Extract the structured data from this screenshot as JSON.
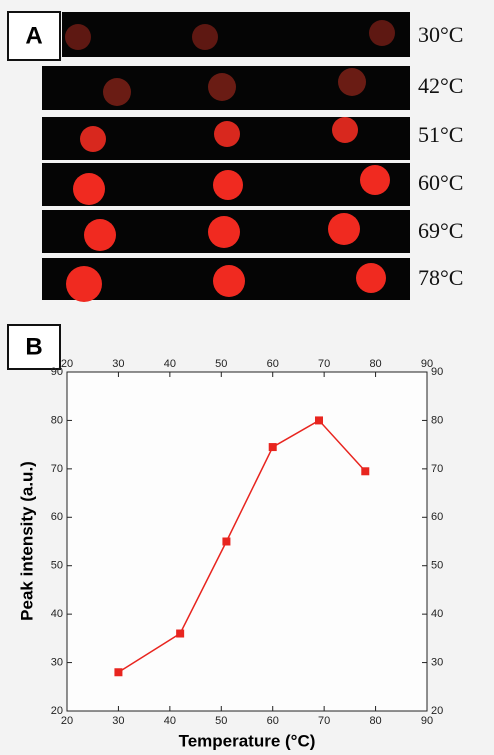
{
  "panel_a": {
    "label": "A",
    "rows": [
      "30°C",
      "42°C",
      "51°C",
      "60°C",
      "69°C",
      "78°C"
    ]
  },
  "chart_data": {
    "type": "line",
    "panel_label": "B",
    "xlabel": "Temperature (°C)",
    "ylabel": "Peak intensity (a.u.)",
    "x": [
      30,
      42,
      51,
      60,
      69,
      78
    ],
    "values": [
      28,
      36,
      55,
      74.5,
      80,
      69.5
    ],
    "color": "#e8251f",
    "xlim": [
      20,
      90
    ],
    "ylim": [
      20,
      90
    ],
    "xticks": [
      20,
      30,
      40,
      50,
      60,
      70,
      80,
      90
    ],
    "yticks": [
      20,
      30,
      40,
      50,
      60,
      70,
      80,
      90
    ],
    "grid": false
  }
}
